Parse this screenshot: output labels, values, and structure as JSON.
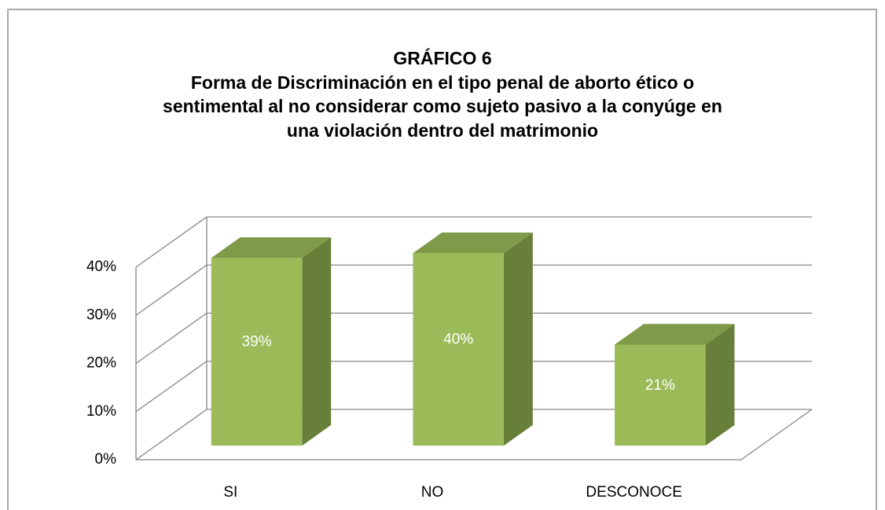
{
  "chart_data": {
    "type": "bar3d",
    "title": [
      "GRÁFICO 6",
      "Forma de Discriminación en el tipo penal de aborto ético o",
      "sentimental al no considerar como sujeto pasivo a la conyúge en",
      "una violación dentro del matrimonio"
    ],
    "categories": [
      "SI",
      "NO",
      "DESCONOCE"
    ],
    "values": [
      39,
      40,
      21
    ],
    "value_labels": [
      "39%",
      "40%",
      "21%"
    ],
    "color": "#9bbb59",
    "ylim": [
      0,
      40
    ],
    "yticks": [
      {
        "value": 0,
        "label": "0%"
      },
      {
        "value": 10,
        "label": "10%"
      },
      {
        "value": 20,
        "label": "20%"
      },
      {
        "value": 30,
        "label": "30%"
      },
      {
        "value": 40,
        "label": "40%"
      }
    ],
    "grid": true
  }
}
